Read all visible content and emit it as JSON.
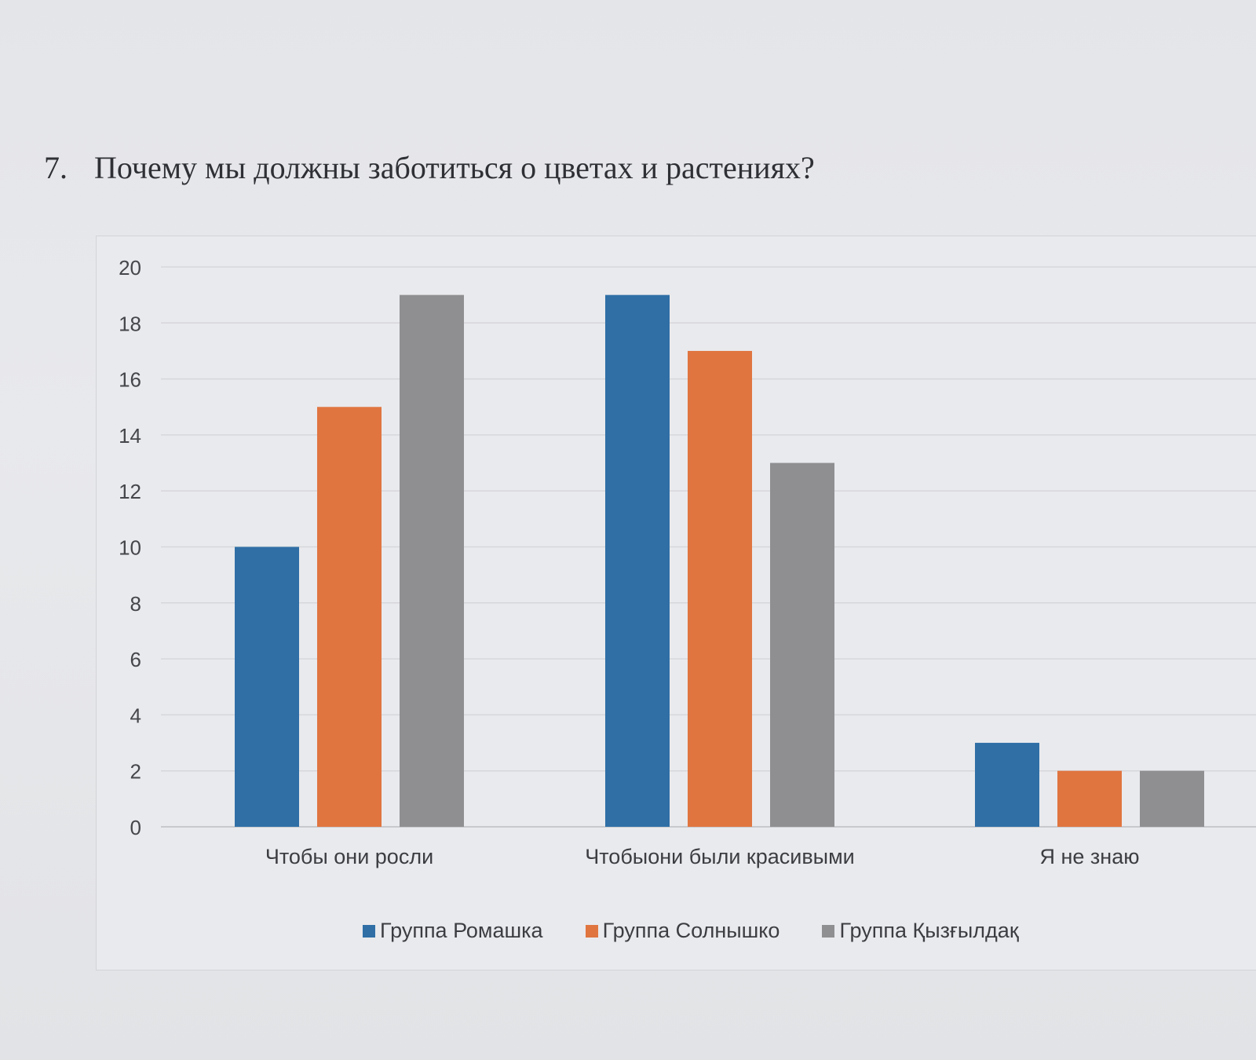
{
  "question": {
    "number": "7.",
    "text": "Почему мы должны заботиться о цветах и растениях?"
  },
  "chart_data": {
    "type": "bar",
    "categories": [
      "Чтобы они росли",
      "Чтобыони были красивыми",
      "Я не знаю"
    ],
    "series": [
      {
        "name": "Группа Ромашка",
        "color": "#2f6fa6",
        "values": [
          10,
          19,
          3
        ]
      },
      {
        "name": "Группа Солнышко",
        "color": "#e07540",
        "values": [
          15,
          17,
          2
        ]
      },
      {
        "name": "Группа Қызғылдақ",
        "color": "#8f8f91",
        "values": [
          19,
          13,
          2
        ]
      }
    ],
    "yticks": [
      0,
      2,
      4,
      6,
      8,
      10,
      12,
      14,
      16,
      18,
      20
    ],
    "ylim": [
      0,
      20
    ],
    "grid": true,
    "legend_position": "bottom"
  }
}
